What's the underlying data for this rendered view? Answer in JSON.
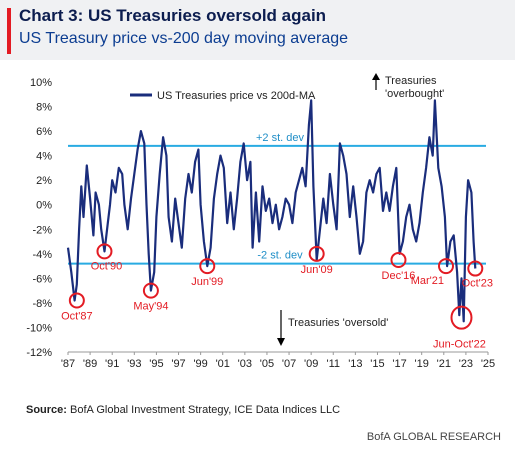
{
  "header": {
    "title": "Chart 3: US Treasuries oversold again",
    "subtitle": "US Treasury price vs-200 day moving average"
  },
  "footer": {
    "source_label": "Source:",
    "source_text": "BofA Global Investment Strategy, ICE Data Indices LLC",
    "brand": "BofA GLOBAL RESEARCH"
  },
  "colors": {
    "series": "#1a2d7c",
    "band": "#29abe2",
    "circle": "#e31b23"
  },
  "chart_data": {
    "type": "line",
    "title": "",
    "xlabel": "",
    "ylabel": "",
    "xlim": [
      1987,
      2025
    ],
    "ylim": [
      -12,
      10
    ],
    "x_ticks": [
      "'87",
      "'89",
      "'91",
      "'93",
      "'95",
      "'97",
      "'99",
      "'01",
      "'03",
      "'05",
      "'07",
      "'09",
      "'11",
      "'13",
      "'15",
      "'17",
      "'19",
      "'21",
      "'23",
      "'25"
    ],
    "y_ticks": [
      "10%",
      "8%",
      "6%",
      "4%",
      "2%",
      "0%",
      "-2%",
      "-4%",
      "-6%",
      "-8%",
      "-10%",
      "-12%"
    ],
    "y_tick_values": [
      10,
      8,
      6,
      4,
      2,
      0,
      -2,
      -4,
      -6,
      -8,
      -10,
      -12
    ],
    "legend": {
      "label": "US Treasuries price vs 200d-MA",
      "position": "top-left"
    },
    "bands": [
      {
        "label": "+2 st. dev",
        "value": 4.8
      },
      {
        "label": "-2 st. dev",
        "value": -4.8
      }
    ],
    "series": [
      {
        "name": "US Treasuries price vs 200d-MA",
        "x": [
          1987.0,
          1987.3,
          1987.6,
          1987.8,
          1988.0,
          1988.2,
          1988.4,
          1988.7,
          1989.0,
          1989.3,
          1989.5,
          1989.8,
          1990.0,
          1990.3,
          1990.6,
          1990.8,
          1991.0,
          1991.3,
          1991.6,
          1991.9,
          1992.1,
          1992.4,
          1992.7,
          1993.0,
          1993.3,
          1993.6,
          1993.9,
          1994.1,
          1994.3,
          1994.5,
          1994.8,
          1995.0,
          1995.3,
          1995.6,
          1995.9,
          1996.1,
          1996.4,
          1996.7,
          1997.0,
          1997.3,
          1997.6,
          1997.9,
          1998.2,
          1998.5,
          1998.8,
          1999.0,
          1999.3,
          1999.6,
          1999.9,
          2000.2,
          2000.5,
          2000.8,
          2001.1,
          2001.4,
          2001.7,
          2002.0,
          2002.3,
          2002.6,
          2002.9,
          2003.2,
          2003.5,
          2003.7,
          2004.0,
          2004.3,
          2004.6,
          2004.9,
          2005.2,
          2005.5,
          2005.8,
          2006.1,
          2006.4,
          2006.7,
          2007.0,
          2007.3,
          2007.6,
          2007.9,
          2008.2,
          2008.5,
          2008.8,
          2009.0,
          2009.2,
          2009.5,
          2009.8,
          2010.1,
          2010.4,
          2010.7,
          2011.0,
          2011.3,
          2011.6,
          2011.9,
          2012.2,
          2012.5,
          2012.8,
          2013.1,
          2013.4,
          2013.7,
          2014.0,
          2014.3,
          2014.6,
          2014.9,
          2015.2,
          2015.5,
          2015.8,
          2016.1,
          2016.4,
          2016.7,
          2017.0,
          2017.3,
          2017.6,
          2017.9,
          2018.2,
          2018.5,
          2018.8,
          2019.1,
          2019.4,
          2019.7,
          2020.0,
          2020.2,
          2020.5,
          2020.8,
          2021.1,
          2021.3,
          2021.6,
          2021.9,
          2022.2,
          2022.4,
          2022.6,
          2022.8,
          2023.0,
          2023.2,
          2023.5,
          2023.7,
          2023.85
        ],
        "y": [
          -3.5,
          -5.5,
          -7.8,
          -6.5,
          -2.0,
          1.5,
          -1.0,
          3.2,
          0.5,
          -2.5,
          1.0,
          0.0,
          -2.0,
          -3.8,
          -1.5,
          0.0,
          2.0,
          1.0,
          3.0,
          2.5,
          0.0,
          -2.0,
          0.5,
          2.5,
          4.5,
          6.0,
          5.0,
          0.0,
          -4.0,
          -7.0,
          -5.5,
          -1.0,
          2.5,
          5.5,
          4.0,
          -1.0,
          -3.0,
          0.5,
          -1.5,
          -3.5,
          0.5,
          2.5,
          1.0,
          3.5,
          4.5,
          0.0,
          -3.0,
          -5.0,
          -3.5,
          0.5,
          2.5,
          4.0,
          3.0,
          -1.5,
          1.0,
          -2.0,
          0.5,
          3.5,
          5.0,
          2.0,
          3.5,
          -3.5,
          1.0,
          -3.0,
          1.5,
          -0.5,
          0.5,
          -1.5,
          0.0,
          -2.0,
          -1.0,
          0.5,
          0.0,
          -1.5,
          1.0,
          2.0,
          3.0,
          1.5,
          6.5,
          8.5,
          1.5,
          -4.5,
          -2.0,
          0.5,
          -1.5,
          2.5,
          0.0,
          -2.0,
          5.0,
          4.0,
          2.5,
          -1.0,
          1.5,
          -1.0,
          -4.0,
          -3.0,
          1.0,
          2.0,
          1.0,
          2.5,
          3.0,
          -0.5,
          1.0,
          -0.5,
          1.5,
          3.0,
          -4.0,
          -3.0,
          -1.0,
          0.0,
          -2.0,
          -3.0,
          -1.5,
          1.0,
          3.0,
          5.5,
          4.0,
          8.5,
          3.0,
          1.5,
          -1.0,
          -5.0,
          -3.0,
          -2.5,
          -5.5,
          -9.0,
          -6.0,
          -9.5,
          -1.0,
          2.0,
          1.0,
          -3.0,
          -5.2
        ]
      }
    ],
    "annotations": [
      {
        "label": "Oct'87",
        "x": 1987.8,
        "y": -7.8
      },
      {
        "label": "Oct'90",
        "x": 1990.3,
        "y": -3.8
      },
      {
        "label": "May'94",
        "x": 1994.5,
        "y": -7.0
      },
      {
        "label": "Jun'99",
        "x": 1999.6,
        "y": -5.0
      },
      {
        "label": "Jun'09",
        "x": 2009.5,
        "y": -4.0
      },
      {
        "label": "Dec'16",
        "x": 2016.9,
        "y": -4.5
      },
      {
        "label": "Mar'21",
        "x": 2021.2,
        "y": -5.0
      },
      {
        "label": "Jun-Oct'22",
        "x": 2022.6,
        "y": -9.2
      },
      {
        "label": "Oct'23",
        "x": 2023.85,
        "y": -5.2
      }
    ],
    "notes": {
      "overbought": "Treasuries 'overbought'",
      "oversold": "Treasuries 'oversold'"
    }
  }
}
